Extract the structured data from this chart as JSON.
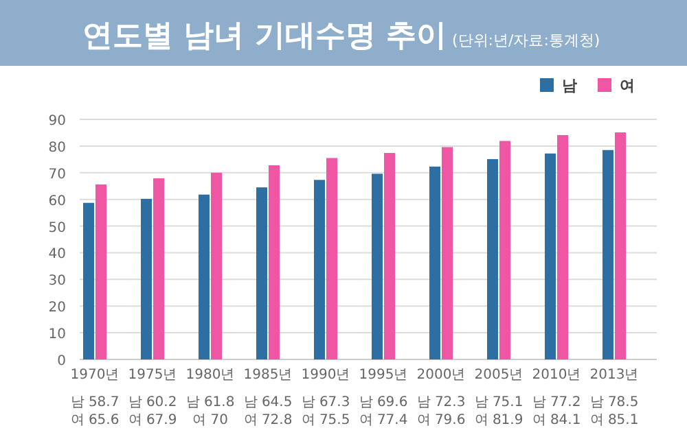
{
  "chart_data": {
    "type": "bar",
    "title": "연도별 남녀 기대수명 추이",
    "subtitle": "(단위:년/자료:통계청)",
    "categories": [
      "1970년",
      "1975년",
      "1980년",
      "1985년",
      "1990년",
      "1995년",
      "2000년",
      "2005년",
      "2010년",
      "2013년"
    ],
    "series": [
      {
        "name": "남",
        "color": "#2e6fa3",
        "values": [
          58.7,
          60.2,
          61.8,
          64.5,
          67.3,
          69.6,
          72.3,
          75.1,
          77.2,
          78.5
        ],
        "value_labels": [
          "남 58.7",
          "남 60.2",
          "남 61.8",
          "남 64.5",
          "남 67.3",
          "남 69.6",
          "남 72.3",
          "남 75.1",
          "남 77.2",
          "남 78.5"
        ]
      },
      {
        "name": "여",
        "color": "#ef56a4",
        "values": [
          65.6,
          67.9,
          70,
          72.8,
          75.5,
          77.4,
          79.6,
          81.9,
          84.1,
          85.1
        ],
        "value_labels": [
          "여 65.6",
          "여 67.9",
          "여 70",
          "여 72.8",
          "여 75.5",
          "여 77.4",
          "여 79.6",
          "여 81.9",
          "여 84.1",
          "여 85.1"
        ]
      }
    ],
    "ylim": [
      0,
      90
    ],
    "yticks": [
      0,
      10,
      20,
      30,
      40,
      50,
      60,
      70,
      80,
      90
    ],
    "grid": "y",
    "legend": "top right"
  }
}
